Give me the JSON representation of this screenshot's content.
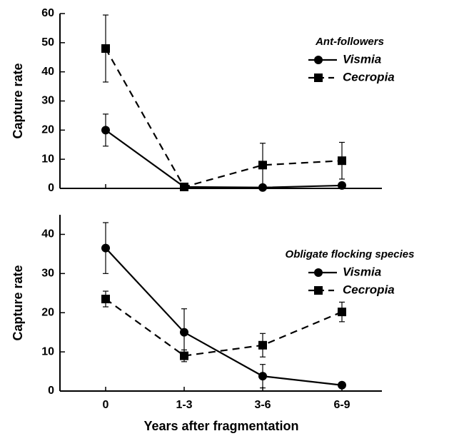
{
  "chart_data": [
    {
      "type": "line",
      "ylabel": "Capture rate",
      "legend_title": "Ant-followers",
      "legend": "upper right",
      "categories": [
        null,
        null,
        null,
        null
      ],
      "ylim": [
        0,
        60
      ],
      "yticks": [
        0,
        10,
        20,
        30,
        40,
        50,
        60
      ],
      "series": [
        {
          "name": "Vismia",
          "color": "#000000",
          "linestyle": "solid",
          "marker": "circle",
          "values": [
            20,
            0.5,
            0.3,
            1
          ],
          "errors": [
            5.5,
            0,
            0,
            0
          ]
        },
        {
          "name": "Cecropia",
          "color": "#000000",
          "linestyle": "dashed",
          "marker": "square",
          "values": [
            48,
            0.5,
            8,
            9.5
          ],
          "errors": [
            11.5,
            0,
            7.5,
            6.3
          ]
        }
      ]
    },
    {
      "type": "line",
      "ylabel": "Capture rate",
      "xlabel": "Years after fragmentation",
      "legend_title": "Obligate flocking species",
      "legend": "upper right",
      "categories": [
        "0",
        "1-3",
        "3-6",
        "6-9"
      ],
      "ylim": [
        0,
        45
      ],
      "yticks": [
        0,
        10,
        20,
        30,
        40
      ],
      "series": [
        {
          "name": "Vismia",
          "color": "#000000",
          "linestyle": "solid",
          "marker": "circle",
          "values": [
            36.5,
            15,
            3.8,
            1.5
          ],
          "errors": [
            6.5,
            6,
            3,
            0.5
          ]
        },
        {
          "name": "Cecropia",
          "color": "#000000",
          "linestyle": "dashed",
          "marker": "square",
          "values": [
            23.5,
            9,
            11.7,
            20.2
          ],
          "errors": [
            2,
            1.5,
            3,
            2.5
          ]
        }
      ]
    }
  ]
}
